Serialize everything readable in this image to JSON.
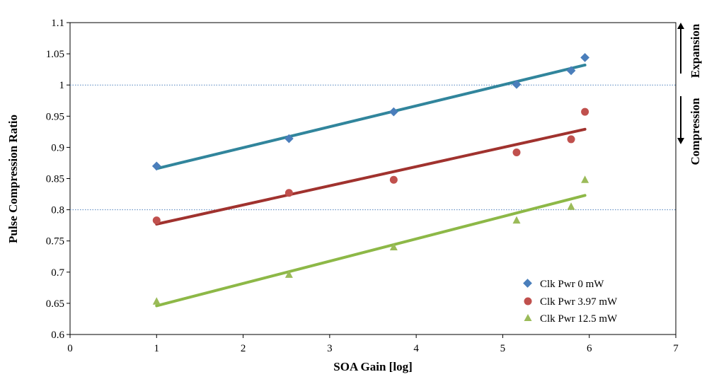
{
  "chart_data": {
    "type": "scatter",
    "title": "",
    "xlabel": "SOA Gain [log]",
    "ylabel": "Pulse Compression Ratio",
    "xlim": [
      0,
      7
    ],
    "ylim": [
      0.6,
      1.1
    ],
    "x_ticks": [
      "0",
      "1",
      "2",
      "3",
      "4",
      "5",
      "6",
      "7"
    ],
    "y_ticks": [
      "0.6",
      "0.65",
      "0.7",
      "0.75",
      "0.8",
      "0.85",
      "0.9",
      "0.95",
      "1",
      "1.05",
      "1.1"
    ],
    "grid": false,
    "reference_lines_y": [
      1.0,
      0.8
    ],
    "legend_position": "bottom-right",
    "series": [
      {
        "name": "Clk Pwr 0 mW",
        "marker": "diamond",
        "marker_color": "#4a7ebb",
        "line_color": "#31859c",
        "x": [
          1.0,
          2.53,
          3.74,
          5.16,
          5.79,
          5.95
        ],
        "y": [
          0.87,
          0.914,
          0.957,
          1.001,
          1.023,
          1.044
        ],
        "trend": {
          "x": [
            1.0,
            5.95
          ],
          "y": [
            0.866,
            1.032
          ]
        }
      },
      {
        "name": "Clk Pwr 3.97 mW",
        "marker": "circle",
        "marker_color": "#c0504d",
        "line_color": "#a0322e",
        "x": [
          1.0,
          2.53,
          3.74,
          5.16,
          5.79,
          5.95
        ],
        "y": [
          0.783,
          0.827,
          0.848,
          0.892,
          0.913,
          0.957
        ],
        "trend": {
          "x": [
            1.0,
            5.95
          ],
          "y": [
            0.777,
            0.929
          ]
        }
      },
      {
        "name": "Clk Pwr 12.5 mW",
        "marker": "triangle",
        "marker_color": "#9bbb59",
        "line_color": "#8db847",
        "x": [
          1.0,
          2.53,
          3.74,
          5.16,
          5.79,
          5.95
        ],
        "y": [
          0.653,
          0.696,
          0.74,
          0.783,
          0.805,
          0.848
        ],
        "trend": {
          "x": [
            1.0,
            5.95
          ],
          "y": [
            0.646,
            0.823
          ]
        }
      }
    ],
    "side_labels": [
      "Expansion",
      "Compression"
    ]
  }
}
